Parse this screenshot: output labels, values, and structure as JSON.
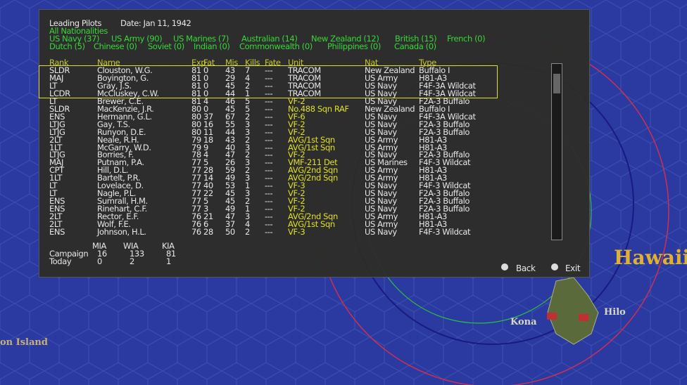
{
  "header": {
    "title": "Leading Pilots",
    "date": "Date: Jan 11, 1942",
    "filter": "All Nationalities",
    "nationalities": [
      [
        "US Navy (37)",
        "US Army (90)",
        "US Marines (7)",
        "Australian (14)",
        "New Zealand (12)",
        "British (15)",
        "French (0)"
      ],
      [
        "Dutch (5)",
        "Chinese (0)",
        "Soviet (0)",
        "Indian (0)",
        "Commonwealth (0)",
        "Philippines (0)",
        "Canada (0)"
      ]
    ]
  },
  "table": {
    "columns": [
      "Rank",
      "Name",
      "Exp",
      "Fat",
      "Mis",
      "Kills",
      "Fate",
      "Unit",
      "Nat",
      "Type"
    ],
    "rows": [
      [
        "SLDR",
        "Clouston, W.G.",
        "81",
        "0",
        "43",
        "7",
        "---",
        "TRACOM",
        "New Zealand",
        "Buffalo I"
      ],
      [
        "MAJ",
        "Boyington, G.",
        "81",
        "0",
        "29",
        "4",
        "---",
        "TRACOM",
        "US Army",
        "H81-A3"
      ],
      [
        "LT",
        "Gray, J.S.",
        "81",
        "0",
        "45",
        "2",
        "---",
        "TRACOM",
        "US Navy",
        "F4F-3A Wildcat"
      ],
      [
        "LCDR",
        "McCluskey, C.W.",
        "81",
        "0",
        "44",
        "1",
        "---",
        "TRACOM",
        "US Navy",
        "F4F-3A Wildcat"
      ],
      [
        "LT",
        "Brewer, C.E.",
        "81",
        "4",
        "46",
        "5",
        "---",
        "VF-2",
        "US Navy",
        "F2A-3 Buffalo"
      ],
      [
        "SLDR",
        "MacKenzie, J.R.",
        "80",
        "0",
        "45",
        "5",
        "---",
        "No.488 Sqn RAF",
        "New Zealand",
        "Buffalo I"
      ],
      [
        "ENS",
        "Hermann, G.L.",
        "80",
        "37",
        "67",
        "2",
        "---",
        "VF-6",
        "US Navy",
        "F4F-3A Wildcat"
      ],
      [
        "LTJG",
        "Gay, T.S.",
        "80",
        "16",
        "55",
        "3",
        "---",
        "VF-2",
        "US Navy",
        "F2A-3 Buffalo"
      ],
      [
        "LTJG",
        "Runyon, D.E.",
        "80",
        "11",
        "44",
        "3",
        "---",
        "VF-2",
        "US Navy",
        "F2A-3 Buffalo"
      ],
      [
        "2LT",
        "Neale, R.H.",
        "79",
        "18",
        "43",
        "2",
        "---",
        "AVG/1st Sqn",
        "US Army",
        "H81-A3"
      ],
      [
        "1LT",
        "McGarry, W.D.",
        "79",
        "9",
        "40",
        "3",
        "---",
        "AVG/1st Sqn",
        "US Army",
        "H81-A3"
      ],
      [
        "LTJG",
        "Borries, F.",
        "78",
        "4",
        "47",
        "2",
        "---",
        "VF-2",
        "US Navy",
        "F2A-3 Buffalo"
      ],
      [
        "MAJ",
        "Putnam, P.A.",
        "77",
        "5",
        "26",
        "3",
        "---",
        "VMF-211 Det",
        "US Marines",
        "F4F-3 Wildcat"
      ],
      [
        "CPT",
        "Hill, D.L.",
        "77",
        "28",
        "59",
        "2",
        "---",
        "AVG/2nd Sqn",
        "US Army",
        "H81-A3"
      ],
      [
        "1LT",
        "Bartelt, P.R.",
        "77",
        "14",
        "49",
        "3",
        "---",
        "AVG/2nd Sqn",
        "US Army",
        "H81-A3"
      ],
      [
        "LT",
        "Lovelace, D.",
        "77",
        "40",
        "53",
        "1",
        "---",
        "VF-3",
        "US Navy",
        "F4F-3 Wildcat"
      ],
      [
        "LT",
        "Nagle, P.L.",
        "77",
        "22",
        "45",
        "3",
        "---",
        "VF-2",
        "US Navy",
        "F2A-3 Buffalo"
      ],
      [
        "ENS",
        "Sumrall, H.M.",
        "77",
        "5",
        "45",
        "2",
        "---",
        "VF-2",
        "US Navy",
        "F2A-3 Buffalo"
      ],
      [
        "ENS",
        "Rinehart, C.F.",
        "77",
        "3",
        "49",
        "1",
        "---",
        "VF-2",
        "US Navy",
        "F2A-3 Buffalo"
      ],
      [
        "2LT",
        "Rector, E.F.",
        "76",
        "21",
        "47",
        "3",
        "---",
        "AVG/2nd Sqn",
        "US Army",
        "H81-A3"
      ],
      [
        "2LT",
        "Wolf, F.E.",
        "76",
        "6",
        "37",
        "4",
        "---",
        "AVG/1st Sqn",
        "US Army",
        "H81-A3"
      ],
      [
        "ENS",
        "Johnson, H.L.",
        "76",
        "28",
        "50",
        "2",
        "---",
        "VF-3",
        "US Navy",
        "F4F-3 Wildcat"
      ]
    ]
  },
  "summary": {
    "columns": [
      "MIA",
      "WIA",
      "KIA"
    ],
    "rows": [
      [
        "Campaign",
        "16",
        "133",
        "81"
      ],
      [
        "Today",
        "0",
        "2",
        "1"
      ]
    ]
  },
  "buttons": [
    "Back",
    "Exit"
  ],
  "map": {
    "labels": [
      "Hawaii",
      "Kona",
      "Hilo",
      "on Island"
    ]
  }
}
